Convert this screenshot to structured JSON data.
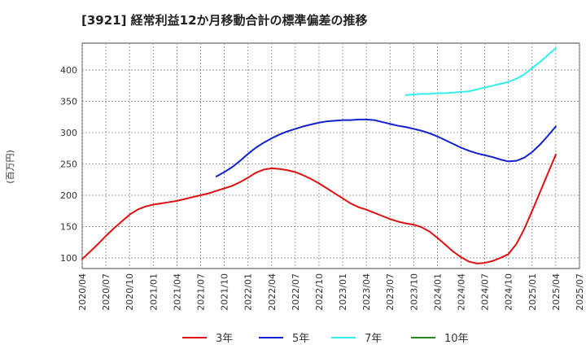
{
  "chart_data": {
    "type": "line",
    "title": "[3921]  経常利益12か月移動合計の標準偏差の推移",
    "ylabel": "(百万円)",
    "xlabel": "",
    "x_ticks": [
      "2020/04",
      "2020/07",
      "2020/10",
      "2021/01",
      "2021/04",
      "2021/07",
      "2021/10",
      "2022/01",
      "2022/04",
      "2022/07",
      "2022/10",
      "2023/01",
      "2023/04",
      "2023/07",
      "2023/10",
      "2024/01",
      "2024/04",
      "2024/07",
      "2024/10",
      "2025/01",
      "2025/04",
      "2025/07"
    ],
    "xlim": [
      "2020/04",
      "2025/07"
    ],
    "y_ticks": [
      100,
      150,
      200,
      250,
      300,
      350,
      400
    ],
    "ylim": [
      83,
      443
    ],
    "grid": true,
    "legend_position": "bottom",
    "series": [
      {
        "name": "3年",
        "color": "#dd1111",
        "points": [
          [
            "2020/04",
            98
          ],
          [
            "2020/05",
            110
          ],
          [
            "2020/06",
            122
          ],
          [
            "2020/07",
            135
          ],
          [
            "2020/08",
            147
          ],
          [
            "2020/09",
            158
          ],
          [
            "2020/10",
            169
          ],
          [
            "2020/11",
            177
          ],
          [
            "2020/12",
            182
          ],
          [
            "2021/01",
            185
          ],
          [
            "2021/02",
            187
          ],
          [
            "2021/03",
            189
          ],
          [
            "2021/04",
            191
          ],
          [
            "2021/05",
            194
          ],
          [
            "2021/06",
            197
          ],
          [
            "2021/07",
            200
          ],
          [
            "2021/08",
            203
          ],
          [
            "2021/09",
            207
          ],
          [
            "2021/10",
            211
          ],
          [
            "2021/11",
            215
          ],
          [
            "2021/12",
            221
          ],
          [
            "2022/01",
            228
          ],
          [
            "2022/02",
            236
          ],
          [
            "2022/03",
            241
          ],
          [
            "2022/04",
            243
          ],
          [
            "2022/05",
            242
          ],
          [
            "2022/06",
            240
          ],
          [
            "2022/07",
            237
          ],
          [
            "2022/08",
            232
          ],
          [
            "2022/09",
            226
          ],
          [
            "2022/10",
            219
          ],
          [
            "2022/11",
            211
          ],
          [
            "2022/12",
            203
          ],
          [
            "2023/01",
            195
          ],
          [
            "2023/02",
            187
          ],
          [
            "2023/03",
            181
          ],
          [
            "2023/04",
            177
          ],
          [
            "2023/05",
            172
          ],
          [
            "2023/06",
            167
          ],
          [
            "2023/07",
            162
          ],
          [
            "2023/08",
            158
          ],
          [
            "2023/09",
            155
          ],
          [
            "2023/10",
            153
          ],
          [
            "2023/11",
            149
          ],
          [
            "2023/12",
            142
          ],
          [
            "2024/01",
            132
          ],
          [
            "2024/02",
            121
          ],
          [
            "2024/03",
            110
          ],
          [
            "2024/04",
            101
          ],
          [
            "2024/05",
            94
          ],
          [
            "2024/06",
            91
          ],
          [
            "2024/07",
            92
          ],
          [
            "2024/08",
            95
          ],
          [
            "2024/09",
            100
          ],
          [
            "2024/10",
            106
          ],
          [
            "2024/11",
            122
          ],
          [
            "2024/12",
            146
          ],
          [
            "2025/01",
            175
          ],
          [
            "2025/02",
            205
          ],
          [
            "2025/03",
            235
          ],
          [
            "2025/04",
            265
          ]
        ]
      },
      {
        "name": "5年",
        "color": "#1122cc",
        "points": [
          [
            "2021/09",
            230
          ],
          [
            "2021/10",
            237
          ],
          [
            "2021/11",
            245
          ],
          [
            "2021/12",
            255
          ],
          [
            "2022/01",
            266
          ],
          [
            "2022/02",
            276
          ],
          [
            "2022/03",
            284
          ],
          [
            "2022/04",
            291
          ],
          [
            "2022/05",
            297
          ],
          [
            "2022/06",
            302
          ],
          [
            "2022/07",
            306
          ],
          [
            "2022/08",
            310
          ],
          [
            "2022/09",
            313
          ],
          [
            "2022/10",
            316
          ],
          [
            "2022/11",
            318
          ],
          [
            "2022/12",
            319
          ],
          [
            "2023/01",
            320
          ],
          [
            "2023/02",
            320
          ],
          [
            "2023/03",
            321
          ],
          [
            "2023/04",
            321
          ],
          [
            "2023/05",
            320
          ],
          [
            "2023/06",
            317
          ],
          [
            "2023/07",
            314
          ],
          [
            "2023/08",
            311
          ],
          [
            "2023/09",
            309
          ],
          [
            "2023/10",
            306
          ],
          [
            "2023/11",
            303
          ],
          [
            "2023/12",
            299
          ],
          [
            "2024/01",
            294
          ],
          [
            "2024/02",
            288
          ],
          [
            "2024/03",
            282
          ],
          [
            "2024/04",
            276
          ],
          [
            "2024/05",
            271
          ],
          [
            "2024/06",
            267
          ],
          [
            "2024/07",
            264
          ],
          [
            "2024/08",
            261
          ],
          [
            "2024/09",
            257
          ],
          [
            "2024/10",
            254
          ],
          [
            "2024/11",
            255
          ],
          [
            "2024/12",
            260
          ],
          [
            "2025/01",
            269
          ],
          [
            "2025/02",
            281
          ],
          [
            "2025/03",
            295
          ],
          [
            "2025/04",
            310
          ]
        ]
      },
      {
        "name": "7年",
        "color": "#33eeee",
        "points": [
          [
            "2023/09",
            360
          ],
          [
            "2023/10",
            361
          ],
          [
            "2023/11",
            362
          ],
          [
            "2023/12",
            362
          ],
          [
            "2024/01",
            363
          ],
          [
            "2024/02",
            363
          ],
          [
            "2024/03",
            364
          ],
          [
            "2024/04",
            365
          ],
          [
            "2024/05",
            366
          ],
          [
            "2024/06",
            369
          ],
          [
            "2024/07",
            372
          ],
          [
            "2024/08",
            375
          ],
          [
            "2024/09",
            378
          ],
          [
            "2024/10",
            381
          ],
          [
            "2024/11",
            386
          ],
          [
            "2024/12",
            393
          ],
          [
            "2025/01",
            403
          ],
          [
            "2025/02",
            413
          ],
          [
            "2025/03",
            424
          ],
          [
            "2025/04",
            435
          ]
        ]
      },
      {
        "name": "10年",
        "color": "#228822",
        "points": []
      }
    ]
  }
}
